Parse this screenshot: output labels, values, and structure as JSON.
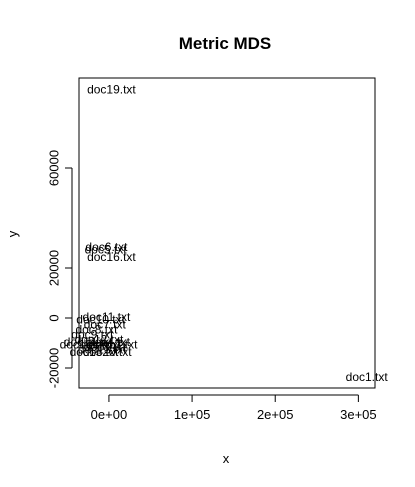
{
  "chart_data": {
    "type": "scatter",
    "title": "Metric MDS",
    "xlabel": "x",
    "ylabel": "y",
    "xlim": [
      -36000,
      320000
    ],
    "ylim": [
      -28000,
      96000
    ],
    "xticks": [
      {
        "value": 0,
        "label": "0e+00"
      },
      {
        "value": 100000,
        "label": "1e+05"
      },
      {
        "value": 200000,
        "label": "2e+05"
      },
      {
        "value": 300000,
        "label": "3e+05"
      }
    ],
    "yticks": [
      {
        "value": -20000,
        "label": "-20000"
      },
      {
        "value": 0,
        "label": "0"
      },
      {
        "value": 20000,
        "label": "20000"
      },
      {
        "value": 60000,
        "label": "60000"
      }
    ],
    "grid": false,
    "legend": "none",
    "marker": "text-labels",
    "points": [
      {
        "label": "doc19.txt",
        "x": 3000,
        "y": 91000
      },
      {
        "label": "doc6.txt",
        "x": -3000,
        "y": 28000
      },
      {
        "label": "doc5.txt",
        "x": -4000,
        "y": 27000
      },
      {
        "label": "doc16.txt",
        "x": 3000,
        "y": 24000
      },
      {
        "label": "doc11.txt",
        "x": -3000,
        "y": 0
      },
      {
        "label": "doc1.txt",
        "x": 310000,
        "y": -24000
      },
      {
        "label": "doc2.txt",
        "x": -10000,
        "y": -11000
      },
      {
        "label": "doc3.txt",
        "x": -5000,
        "y": -12000
      },
      {
        "label": "doc4.txt",
        "x": 0,
        "y": -10000
      },
      {
        "label": "doc7.txt",
        "x": -5000,
        "y": -3000
      },
      {
        "label": "doc8.txt",
        "x": -15000,
        "y": -5000
      },
      {
        "label": "doc9.txt",
        "x": -20000,
        "y": -7000
      },
      {
        "label": "doc10.txt",
        "x": -10000,
        "y": -1000
      },
      {
        "label": "doc12.txt",
        "x": -12000,
        "y": -9000
      },
      {
        "label": "doc13.txt",
        "x": -8000,
        "y": -13000
      },
      {
        "label": "doc14.txt",
        "x": -25000,
        "y": -10000
      },
      {
        "label": "doc15.txt",
        "x": -18000,
        "y": -14000
      },
      {
        "label": "doc17.txt",
        "x": 5000,
        "y": -11000
      },
      {
        "label": "doc18.txt",
        "x": -30000,
        "y": -11000
      },
      {
        "label": "doc20.txt",
        "x": -2000,
        "y": -14000
      }
    ]
  }
}
